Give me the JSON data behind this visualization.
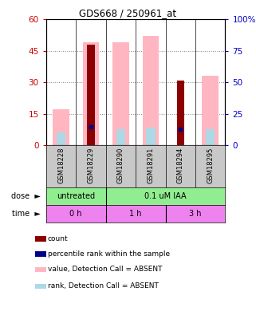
{
  "title": "GDS668 / 250961_at",
  "samples": [
    "GSM18228",
    "GSM18229",
    "GSM18290",
    "GSM18291",
    "GSM18294",
    "GSM18295"
  ],
  "count_values": [
    0,
    48,
    0,
    0,
    31,
    0
  ],
  "rank_values": [
    0,
    15,
    0,
    0,
    13,
    0
  ],
  "absent_value_values": [
    17,
    49,
    49,
    52,
    0,
    33
  ],
  "absent_rank_values": [
    10,
    0,
    13,
    14,
    0,
    13
  ],
  "left_yticks": [
    0,
    15,
    30,
    45,
    60
  ],
  "right_yticks": [
    0,
    25,
    50,
    75,
    100
  ],
  "right_ytick_labels": [
    "0",
    "25",
    "50",
    "75",
    "100%"
  ],
  "dose_labels": [
    "untreated",
    "0.1 uM IAA"
  ],
  "time_labels": [
    "0 h",
    "1 h",
    "3 h"
  ],
  "dose_color": "#90EE90",
  "time_color": "#EE82EE",
  "color_count": "#8B0000",
  "color_rank": "#00008B",
  "color_absent_value": "#FFB6C1",
  "color_absent_rank": "#ADD8E6",
  "bar_width": 0.55,
  "ylim_left": [
    0,
    60
  ],
  "ylim_right": [
    0,
    100
  ],
  "label_color_left": "#CC0000",
  "label_color_right": "#0000CC",
  "legend_items": [
    {
      "color": "#8B0000",
      "label": "count"
    },
    {
      "color": "#00008B",
      "label": "percentile rank within the sample"
    },
    {
      "color": "#FFB6C1",
      "label": "value, Detection Call = ABSENT"
    },
    {
      "color": "#ADD8E6",
      "label": "rank, Detection Call = ABSENT"
    }
  ]
}
